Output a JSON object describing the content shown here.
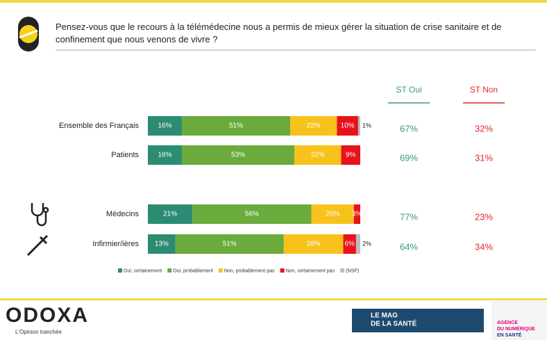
{
  "chart_data": {
    "type": "stacked-bar-100",
    "title": "Pensez-vous que le recours à la télémédecine nous a permis de mieux gérer la situation de crise sanitaire et de confinement que nous venons de vivre ?",
    "categories": [
      "Ensemble des Français",
      "Patients",
      "Médecins",
      "Infirmier/ières"
    ],
    "xlim": [
      0,
      100
    ],
    "series": [
      {
        "name": "Oui, certainement",
        "color": "#2b8c73",
        "values": [
          16,
          16,
          21,
          13
        ],
        "value_labels": [
          "16%",
          "16%",
          "21%",
          "13%"
        ]
      },
      {
        "name": "Oui, probablement",
        "color": "#6aab3c",
        "values": [
          51,
          53,
          56,
          51
        ],
        "value_labels": [
          "51%",
          "53%",
          "56%",
          "51%"
        ]
      },
      {
        "name": "Non, probablement pas",
        "color": "#f8c21c",
        "values": [
          22,
          22,
          20,
          28
        ],
        "value_labels": [
          "22%",
          "22%",
          "20%",
          "28%"
        ]
      },
      {
        "name": "Non, certainement pas",
        "color": "#e8121c",
        "values": [
          10,
          9,
          3,
          6
        ],
        "value_labels": [
          "10%",
          "9%",
          "3%",
          "6%"
        ]
      },
      {
        "name": "(NSP)",
        "color": "#bdbdbd",
        "values": [
          1,
          null,
          null,
          2
        ],
        "value_labels": [
          "1%",
          null,
          null,
          "2%"
        ]
      }
    ],
    "summary": [
      {
        "name": "ST Oui",
        "color": "#3a9a78",
        "values": [
          67,
          69,
          77,
          64
        ],
        "value_labels": [
          "67%",
          "69%",
          "77%",
          "64%"
        ]
      },
      {
        "name": "ST Non",
        "color": "#e22a2a",
        "values": [
          32,
          31,
          23,
          34
        ],
        "value_labels": [
          "32%",
          "31%",
          "23%",
          "34%"
        ]
      }
    ]
  },
  "footer": {
    "brand": "ODOXA",
    "tagline": "L'Opinion tranchée",
    "mag": [
      "LE MAG",
      "DE LA SANTÉ"
    ],
    "agency": [
      "AGENCE",
      "DU NUMÉRIQUE",
      "EN SANTÉ"
    ]
  }
}
